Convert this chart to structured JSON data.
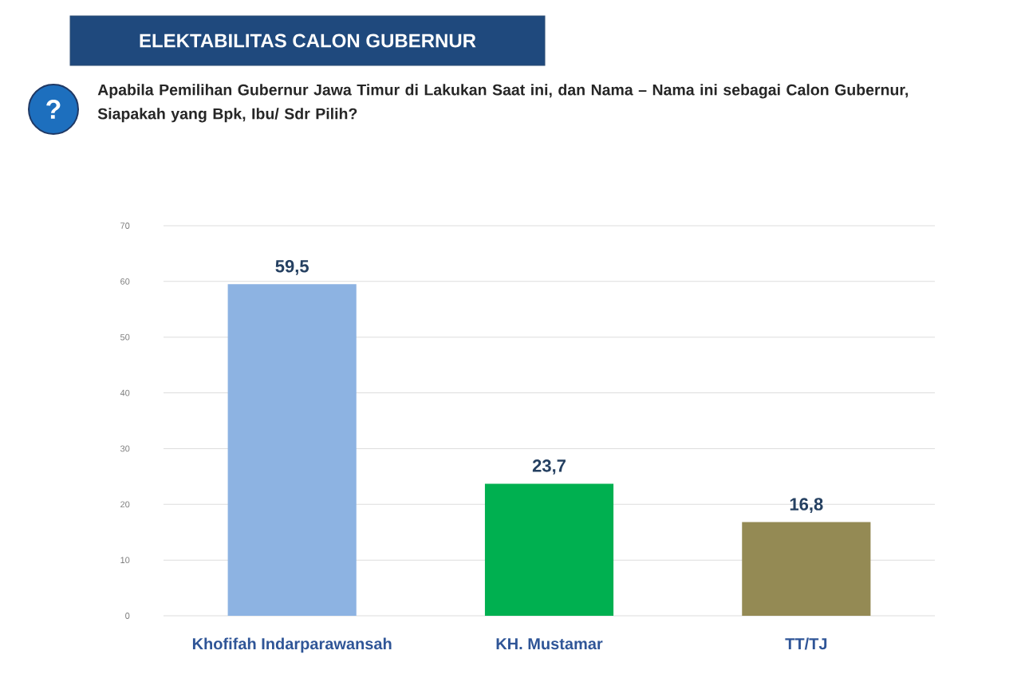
{
  "chart_data": {
    "type": "bar",
    "title": "ELEKTABILITAS CALON GUBERNUR",
    "subtitle": "Apabila Pemilihan Gubernur Jawa Timur di Lakukan Saat ini, dan Nama – Nama ini sebagai Calon Gubernur, Siapakah yang Bpk, Ibu/ Sdr Pilih?",
    "annotations": [
      "?"
    ],
    "categories": [
      "Khofifah Indarparawansah",
      "KH. Mustamar",
      "TT/TJ"
    ],
    "values": [
      59.5,
      23.7,
      16.8
    ],
    "value_labels": [
      "59,5",
      "23,7",
      "16,8"
    ],
    "colors": [
      "#8db3e2",
      "#00b050",
      "#948a54"
    ],
    "ylim": [
      0,
      70
    ],
    "yticks": [
      0,
      10,
      20,
      30,
      40,
      50,
      60,
      70
    ],
    "grid": "y"
  }
}
